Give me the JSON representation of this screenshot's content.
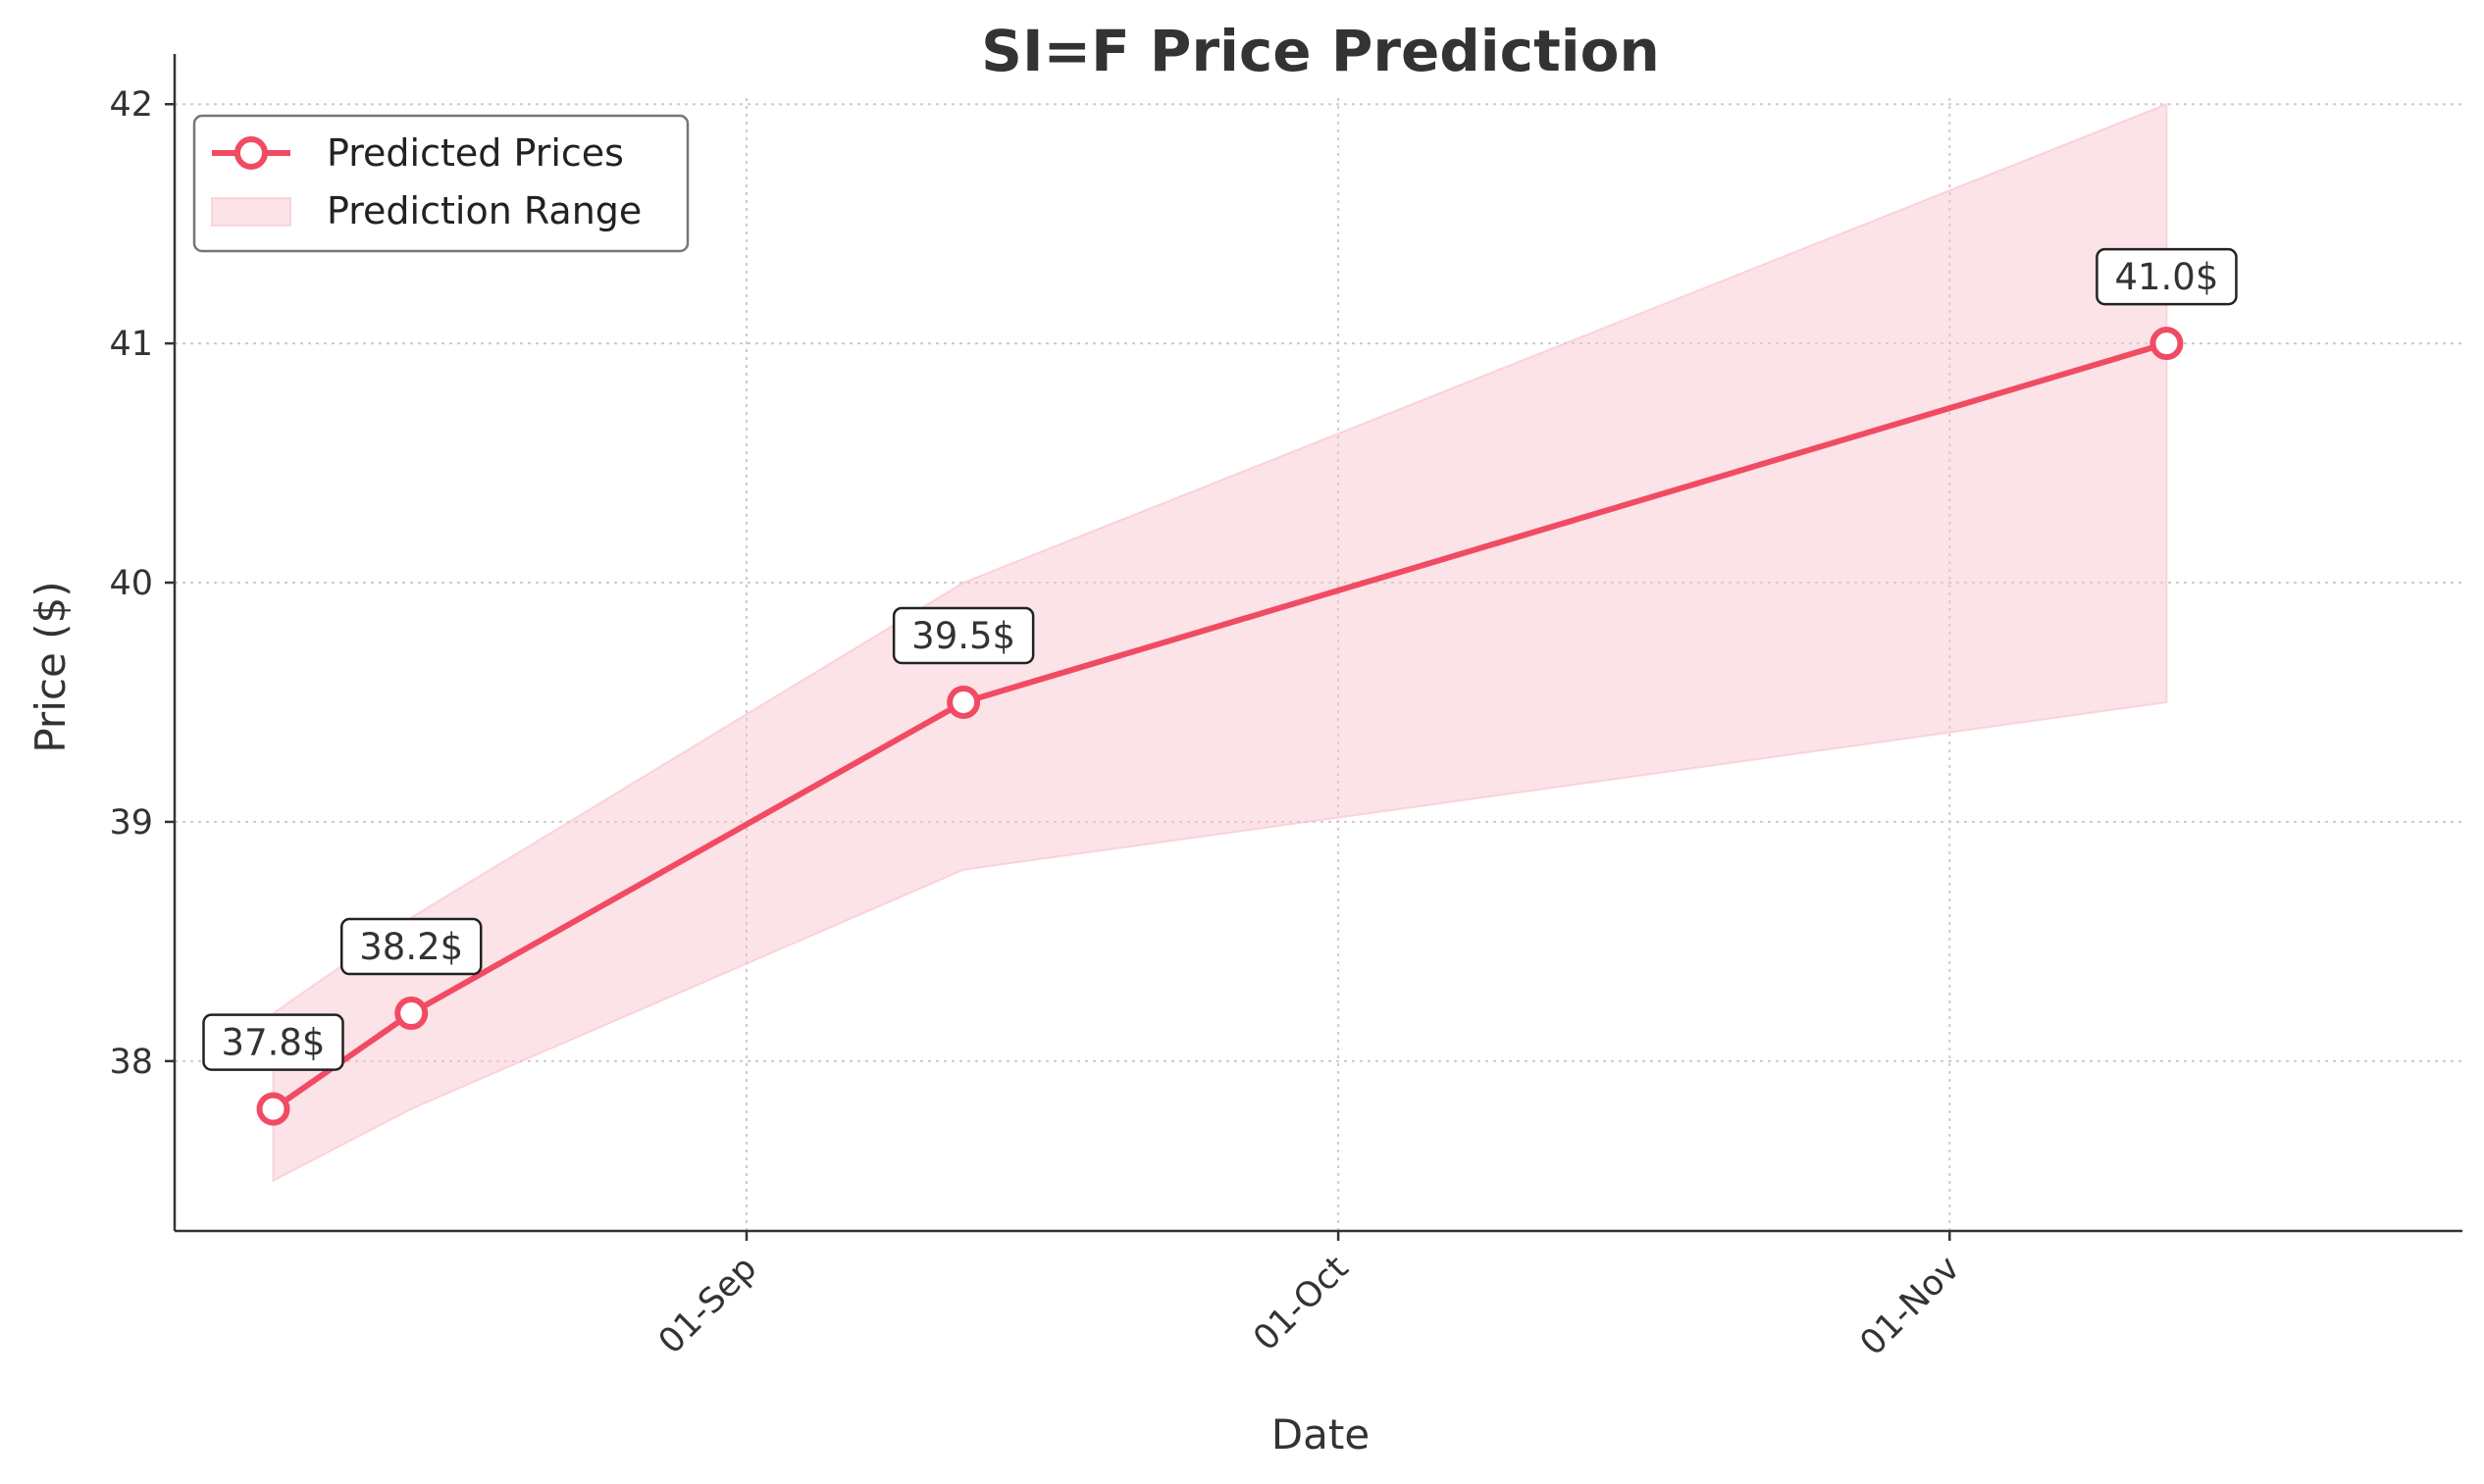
{
  "chart_data": {
    "type": "line",
    "title": "SI=F Price Prediction",
    "xlabel": "Date",
    "ylabel": "Price ($)",
    "x": [
      "2024-08-08",
      "2024-08-15",
      "2024-09-12",
      "2024-11-12"
    ],
    "series": [
      {
        "name": "Predicted Prices",
        "values": [
          37.8,
          38.2,
          39.5,
          41.0
        ],
        "color": "#F14B64",
        "point_labels": [
          "37.8$",
          "38.2$",
          "39.5$",
          "41.0$"
        ]
      }
    ],
    "range": {
      "name": "Prediction Range",
      "lower": [
        37.5,
        37.8,
        38.8,
        39.5
      ],
      "upper": [
        38.2,
        38.6,
        40.0,
        42.0
      ],
      "color": "#F8C0CB"
    },
    "x_ticks": [
      {
        "date": "2024-09-01",
        "label": "01-Sep"
      },
      {
        "date": "2024-10-01",
        "label": "01-Oct"
      },
      {
        "date": "2024-11-01",
        "label": "01-Nov"
      }
    ],
    "y_ticks": [
      38,
      39,
      40,
      41,
      42
    ],
    "xlim": [
      "2024-08-03",
      "2024-11-27"
    ],
    "ylim": [
      37.29,
      42.21
    ],
    "grid": true,
    "legend_position": "top-left"
  }
}
